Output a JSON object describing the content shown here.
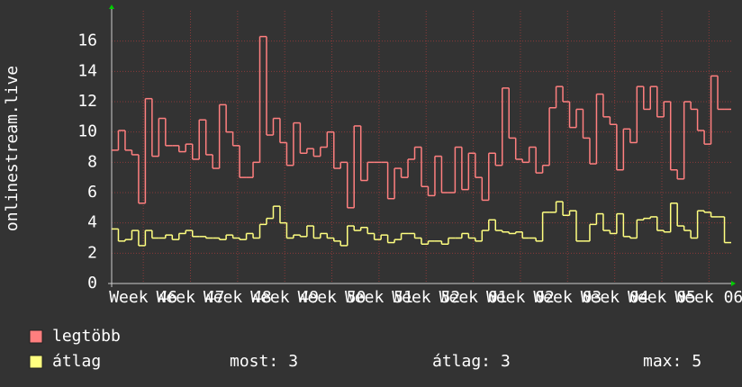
{
  "chart_data": {
    "type": "line",
    "y_label": "onlinestream.live",
    "x": [
      0,
      1,
      2,
      3,
      4,
      5,
      6,
      7,
      8,
      9,
      10,
      11,
      12,
      13,
      14,
      15,
      16,
      17,
      18,
      19,
      20,
      21,
      22,
      23,
      24,
      25,
      26,
      27,
      28,
      29,
      30,
      31,
      32,
      33,
      34,
      35,
      36,
      37,
      38,
      39,
      40,
      41,
      42,
      43,
      44,
      45,
      46,
      47,
      48,
      49,
      50,
      51,
      52,
      53,
      54,
      55,
      56,
      57,
      58,
      59,
      60,
      61,
      62,
      63,
      64,
      65,
      66,
      67,
      68,
      69,
      70,
      71,
      72,
      73,
      74,
      75,
      76,
      77,
      78,
      79,
      80,
      81,
      82,
      83,
      84,
      85,
      86,
      87,
      88,
      89,
      90,
      91
    ],
    "xlim": [
      0,
      92
    ],
    "xticks": [
      {
        "value": 4.7,
        "label": "Week 46"
      },
      {
        "value": 11.7,
        "label": "Week 47"
      },
      {
        "value": 18.7,
        "label": "Week 48"
      },
      {
        "value": 25.7,
        "label": "Week 49"
      },
      {
        "value": 32.7,
        "label": "Week 50"
      },
      {
        "value": 39.7,
        "label": "Week 51"
      },
      {
        "value": 46.7,
        "label": "Week 52"
      },
      {
        "value": 53.7,
        "label": "Week 01"
      },
      {
        "value": 60.7,
        "label": "Week 02"
      },
      {
        "value": 67.7,
        "label": "Week 03"
      },
      {
        "value": 74.7,
        "label": "Week 04"
      },
      {
        "value": 81.7,
        "label": "Week 05"
      },
      {
        "value": 88.7,
        "label": "Week 06"
      }
    ],
    "ylim": [
      0,
      18
    ],
    "yticks": [
      0,
      2,
      4,
      6,
      8,
      10,
      12,
      14,
      16
    ],
    "grid": true,
    "series": [
      {
        "name": "legtöbb",
        "color": "#ff7f7f",
        "values": [
          8.8,
          10.1,
          8.8,
          8.5,
          5.3,
          12.2,
          8.4,
          10.9,
          9.1,
          9.1,
          8.7,
          9.2,
          8.2,
          10.8,
          8.5,
          7.6,
          11.8,
          10.0,
          9.1,
          7.0,
          7.0,
          8.0,
          16.3,
          9.8,
          10.9,
          9.3,
          7.8,
          10.6,
          8.6,
          8.9,
          8.4,
          9.0,
          10.0,
          7.6,
          8.0,
          5.0,
          10.4,
          6.8,
          8.0,
          8.0,
          8.0,
          5.6,
          7.6,
          7.0,
          8.2,
          9.0,
          6.4,
          5.8,
          8.4,
          6.0,
          6.0,
          9.0,
          6.2,
          8.6,
          7.0,
          5.5,
          8.6,
          7.8,
          12.9,
          9.6,
          8.2,
          8.0,
          9.0,
          7.3,
          7.8,
          11.6,
          13.0,
          12.0,
          10.3,
          11.5,
          9.6,
          7.9,
          12.5,
          11.0,
          10.5,
          7.5,
          10.2,
          9.3,
          13.0,
          11.5,
          13.0,
          11.0,
          12.0,
          7.5,
          6.9,
          12.0,
          11.5,
          10.1,
          9.2,
          13.7,
          11.5,
          11.5
        ]
      },
      {
        "name": "átlag",
        "color": "#ffff80",
        "values": [
          3.6,
          2.8,
          2.9,
          3.5,
          2.5,
          3.5,
          3.0,
          3.0,
          3.2,
          2.9,
          3.3,
          3.5,
          3.1,
          3.1,
          3.0,
          3.0,
          2.9,
          3.2,
          3.0,
          2.9,
          3.3,
          3.0,
          3.9,
          4.3,
          5.1,
          4.0,
          3.0,
          3.2,
          3.1,
          3.8,
          3.0,
          3.3,
          3.0,
          2.8,
          2.5,
          3.8,
          3.5,
          3.7,
          3.3,
          2.9,
          3.2,
          2.7,
          2.9,
          3.3,
          3.3,
          3.0,
          2.6,
          2.8,
          2.8,
          2.6,
          3.0,
          3.0,
          3.3,
          3.0,
          2.8,
          3.5,
          4.2,
          3.5,
          3.4,
          3.3,
          3.4,
          3.0,
          3.0,
          2.8,
          4.7,
          4.7,
          5.4,
          4.5,
          4.8,
          2.8,
          2.8,
          3.9,
          4.6,
          3.5,
          3.3,
          4.6,
          3.1,
          3.0,
          4.2,
          4.3,
          4.4,
          3.5,
          3.4,
          5.3,
          3.8,
          3.5,
          3.0,
          4.8,
          4.7,
          4.4,
          4.4,
          2.7
        ]
      }
    ],
    "stats": [
      {
        "label": "most:",
        "value": 3
      },
      {
        "label": "átlag:",
        "value": 3
      },
      {
        "label": "max:",
        "value": 5
      }
    ]
  }
}
